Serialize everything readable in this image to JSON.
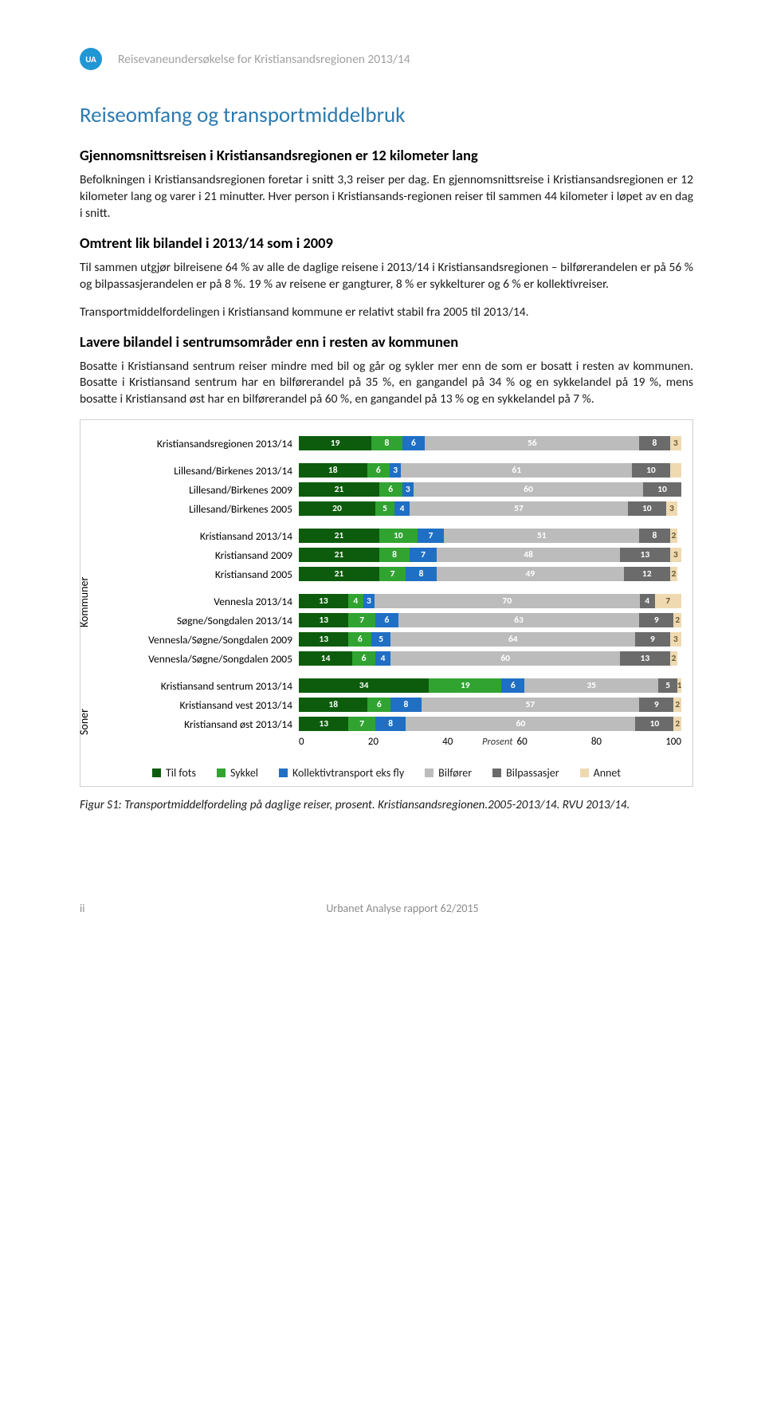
{
  "header": {
    "logo_text": "UA",
    "running_title": "Reisevaneundersøkelse for Kristiansandsregionen 2013/14"
  },
  "title": "Reiseomfang og transportmiddelbruk",
  "section1": {
    "heading": "Gjennomsnittsreisen i Kristiansandsregionen er 12 kilometer lang",
    "p1": "Befolkningen i Kristiansandsregionen foretar i snitt 3,3 reiser per dag. En gjennomsnittsreise i Kristiansandsregionen er 12 kilometer lang og varer i 21 minutter. Hver person i Kristiansands-regionen reiser til sammen 44 kilometer i løpet av en dag i snitt."
  },
  "section2": {
    "heading": "Omtrent lik bilandel i 2013/14 som i 2009",
    "p1": "Til sammen utgjør bilreisene 64 % av alle de daglige reisene i 2013/14 i Kristiansandsregionen – bilførerandelen er på 56 % og bilpassasjerandelen er på 8 %. 19 % av reisene er gangturer, 8 % er sykkelturer og 6 % er kollektivreiser.",
    "p2": "Transportmiddelfordelingen i Kristiansand kommune er relativt stabil fra 2005 til 2013/14."
  },
  "section3": {
    "heading": "Lavere bilandel i sentrumsområder enn i resten av kommunen",
    "p1": "Bosatte i Kristiansand sentrum reiser mindre med bil og går og sykler mer enn de som er bosatt i resten av kommunen. Bosatte i Kristiansand sentrum har en bilførerandel på 35 %, en gangandel på 34 % og en sykkelandel på 19 %, mens bosatte i Kristiansand øst har en bilførerandel på 60 %, en gangandel på 13 % og en sykkelandel på 7 %."
  },
  "chart": {
    "type": "stacked_horizontal_bar",
    "xlim": [
      0,
      100
    ],
    "xticks": [
      0,
      20,
      40,
      60,
      80,
      100
    ],
    "x_axis_label": "Prosent",
    "group_labels": {
      "kommuner": "Kommuner",
      "soner": "Soner"
    },
    "categories": [
      "Til fots",
      "Sykkel",
      "Kollektivtransport eks fly",
      "Bilfører",
      "Bilpassasjer",
      "Annet"
    ],
    "colors": {
      "Til fots": "#0d5c0d",
      "Sykkel": "#31a331",
      "Kollektivtransport eks fly": "#1f6fc4",
      "Bilfører": "#bcbcbc",
      "Bilpassasjer": "#6b6b6b",
      "Annet": "#efd9b0"
    },
    "value_text_color": {
      "Til fots": "#ffffff",
      "Sykkel": "#ffffff",
      "Kollektivtransport eks fly": "#ffffff",
      "Bilfører": "#ffffff",
      "Bilpassasjer": "#ffffff",
      "Annet": "#6b5a34"
    },
    "rows": [
      {
        "label": "Kristiansandsregionen 2013/14",
        "values": [
          19,
          8,
          6,
          56,
          8,
          3
        ],
        "group": "top"
      },
      {
        "spacer": true
      },
      {
        "label": "Lillesand/Birkenes 2013/14",
        "values": [
          18,
          6,
          3,
          61,
          10,
          3
        ],
        "hide": [
          5
        ],
        "group": "kommuner"
      },
      {
        "label": "Lillesand/Birkenes 2009",
        "values": [
          21,
          6,
          3,
          60,
          10,
          0
        ],
        "hide": [
          5
        ],
        "group": "kommuner"
      },
      {
        "label": "Lillesand/Birkenes 2005",
        "values": [
          20,
          5,
          4,
          57,
          10,
          3
        ],
        "group": "kommuner"
      },
      {
        "spacer": true
      },
      {
        "label": "Kristiansand 2013/14",
        "values": [
          21,
          10,
          7,
          51,
          8,
          2
        ],
        "group": "kommuner"
      },
      {
        "label": "Kristiansand 2009",
        "values": [
          21,
          8,
          7,
          48,
          13,
          3
        ],
        "group": "kommuner"
      },
      {
        "label": "Kristiansand 2005",
        "values": [
          21,
          7,
          8,
          49,
          12,
          2
        ],
        "group": "kommuner"
      },
      {
        "spacer": true
      },
      {
        "label": "Vennesla 2013/14",
        "values": [
          13,
          4,
          3,
          70,
          4,
          7
        ],
        "group": "kommuner"
      },
      {
        "label": "Søgne/Songdalen 2013/14",
        "values": [
          13,
          7,
          6,
          63,
          9,
          2
        ],
        "group": "kommuner"
      },
      {
        "label": "Vennesla/Søgne/Songdalen 2009",
        "values": [
          13,
          6,
          5,
          64,
          9,
          3
        ],
        "group": "kommuner"
      },
      {
        "label": "Vennesla/Søgne/Songdalen 2005",
        "values": [
          14,
          6,
          4,
          60,
          13,
          2
        ],
        "group": "kommuner"
      },
      {
        "spacer": true
      },
      {
        "label": "Kristiansand sentrum 2013/14",
        "values": [
          34,
          19,
          6,
          35,
          5,
          1
        ],
        "group": "soner"
      },
      {
        "label": "Kristiansand vest 2013/14",
        "values": [
          18,
          6,
          8,
          57,
          9,
          2
        ],
        "group": "soner"
      },
      {
        "label": "Kristiansand øst 2013/14",
        "values": [
          13,
          7,
          8,
          60,
          10,
          2
        ],
        "group": "soner"
      }
    ]
  },
  "caption": "Figur S1: Transportmiddelfordeling på daglige reiser, prosent. Kristiansandsregionen.2005-2013/14. RVU 2013/14.",
  "footer": {
    "page": "ii",
    "text": "Urbanet Analyse rapport 62/2015"
  }
}
